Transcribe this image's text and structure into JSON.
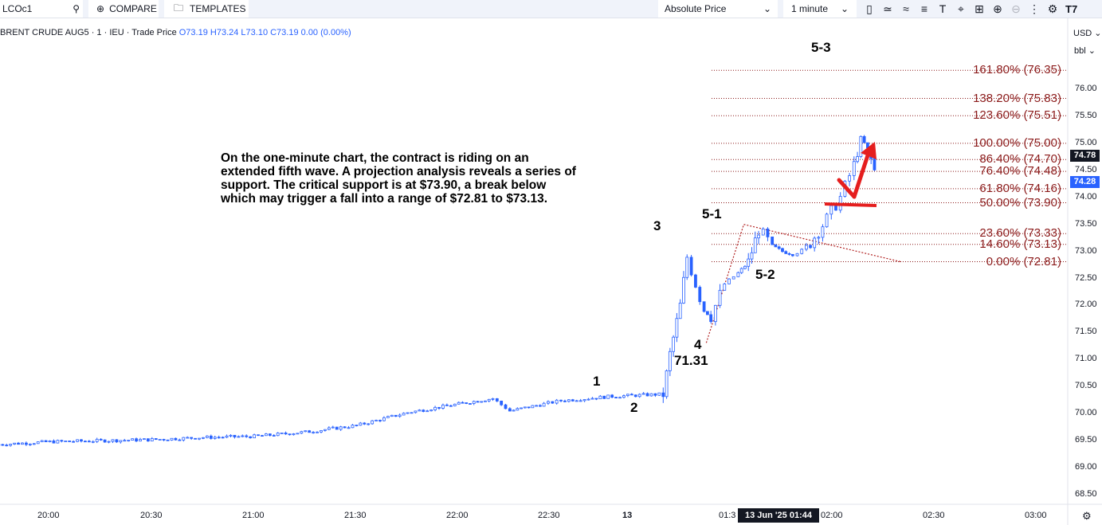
{
  "toolbar": {
    "symbol": "LCOc1",
    "compare_label": "COMPARE",
    "templates_label": "TEMPLATES",
    "price_mode": "Absolute Price",
    "interval": "1 minute",
    "icons": [
      "bar-style-icon",
      "indicators-icon",
      "fx-icon",
      "alerts-icon",
      "text-icon",
      "crosshair-icon",
      "replay-icon",
      "zoom-in-icon",
      "zoom-out-icon",
      "more-icon",
      "settings-icon",
      "tradingview-logo"
    ]
  },
  "legend": {
    "title": "BRENT CRUDE AUG5 · 1 · IEU · Trade Price",
    "ohlc": "O73.19 H73.24 L73.10 C73.19 0.00 (0.00%)"
  },
  "axis": {
    "currency": "USD",
    "unit": "bbl"
  },
  "annotation": "On the one-minute chart, the contract is riding on an extended fifth wave.  A projection analysis reveals a series of support. The critical support is at $73.90, a break below which may trigger a fall into a range of $72.81 to $73.13.",
  "price_tags": {
    "last": "74.78",
    "current": "74.28",
    "last_color": "#131722",
    "current_color": "#2962ff"
  },
  "time_tag": "13 Jun '25   01:44",
  "colors": {
    "fib": "#8b1a1a",
    "candle": "#2962ff",
    "arrow": "#e51e1e"
  },
  "chart_data": {
    "type": "candlestick",
    "title": "BRENT CRUDE AUG5 · 1 · IEU · Trade Price",
    "y_range": [
      68.25,
      76.75
    ],
    "y_ticks": [
      "76.00",
      "75.50",
      "75.00",
      "74.50",
      "74.00",
      "73.50",
      "73.00",
      "72.50",
      "72.00",
      "71.50",
      "71.00",
      "70.50",
      "70.00",
      "69.50",
      "69.00",
      "68.50"
    ],
    "x_ticks": [
      "20:00",
      "20:30",
      "21:00",
      "21:30",
      "22:00",
      "22:30",
      "13",
      "01:3",
      "02:00",
      "02:30",
      "03:00"
    ],
    "price_path": [
      [
        "19:45",
        69.43
      ],
      [
        "20:00",
        69.48
      ],
      [
        "20:30",
        69.52
      ],
      [
        "20:45",
        69.56
      ],
      [
        "21:00",
        69.58
      ],
      [
        "21:15",
        69.66
      ],
      [
        "21:30",
        69.78
      ],
      [
        "21:45",
        70.02
      ],
      [
        "22:00",
        70.18
      ],
      [
        "22:10",
        70.28
      ],
      [
        "22:15",
        70.05
      ],
      [
        "22:25",
        70.18
      ],
      [
        "22:30",
        70.24
      ],
      [
        "22:45",
        70.32
      ],
      [
        "23:00",
        70.36
      ],
      [
        "23:02",
        71.1
      ],
      [
        "23:05",
        72.0
      ],
      [
        "23:07",
        72.9
      ],
      [
        "23:12",
        71.9
      ],
      [
        "23:14",
        71.8
      ],
      [
        "23:18",
        72.4
      ],
      [
        "23:22",
        72.6
      ],
      [
        "23:25",
        72.8
      ],
      [
        "23:28",
        73.4
      ],
      [
        "23:32",
        73.1
      ],
      [
        "23:35",
        73.0
      ],
      [
        "23:38",
        72.95
      ],
      [
        "23:42",
        73.05
      ],
      [
        "23:48",
        73.6
      ],
      [
        "23:52",
        74.0
      ],
      [
        "23:56",
        74.6
      ],
      [
        "23:58",
        75.1
      ],
      [
        "00:00",
        74.9
      ],
      [
        "00:01",
        74.7
      ],
      [
        "00:03",
        74.28
      ]
    ],
    "wave_labels": [
      {
        "text": "1",
        "price": 70.6
      },
      {
        "text": "2",
        "price": 70.1
      },
      {
        "text": "3",
        "price": 73.45
      },
      {
        "text": "4",
        "price": 71.31
      },
      {
        "text": "71.31",
        "price": 71.31
      },
      {
        "text": "5-1",
        "price": 73.5
      },
      {
        "text": "5-2",
        "price": 72.81
      },
      {
        "text": "5-3",
        "price": 76.35
      }
    ],
    "fib_levels": [
      {
        "label": "161.80% (76.35)",
        "value": 76.35
      },
      {
        "label": "138.20% (75.83)",
        "value": 75.83
      },
      {
        "label": "123.60% (75.51)",
        "value": 75.51
      },
      {
        "label": "100.00% (75.00)",
        "value": 75.0
      },
      {
        "label": "86.40% (74.70)",
        "value": 74.7
      },
      {
        "label": "76.40% (74.48)",
        "value": 74.48
      },
      {
        "label": "61.80% (74.16)",
        "value": 74.16
      },
      {
        "label": "50.00% (73.90)",
        "value": 73.9
      },
      {
        "label": "23.60% (73.33)",
        "value": 73.33
      },
      {
        "label": "14.60% (73.13)",
        "value": 73.13
      },
      {
        "label": "0.00% (72.81)",
        "value": 72.81
      }
    ],
    "projection_lines": [
      {
        "from": [
          "23:13",
          71.31
        ],
        "to": [
          "23:24",
          73.5
        ]
      },
      {
        "from": [
          "23:24",
          73.5
        ],
        "to": [
          "00:10",
          72.81
        ]
      }
    ]
  }
}
